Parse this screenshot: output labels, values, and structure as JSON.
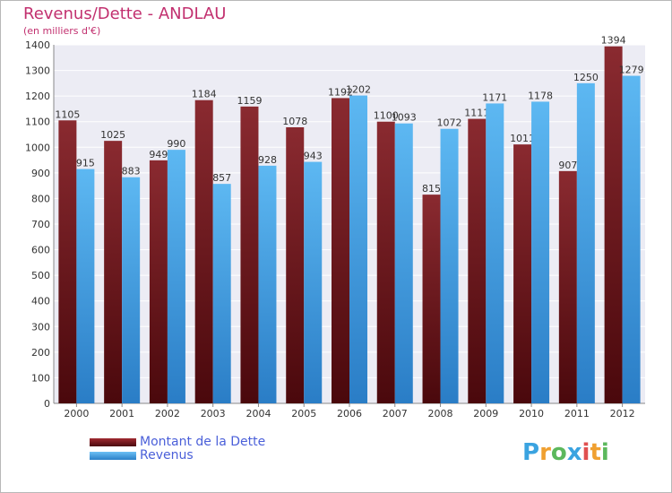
{
  "chart_data": {
    "type": "bar",
    "title": "Revenus/Dette - ANDLAU",
    "subtitle": "(en milliers d'€)",
    "categories": [
      "2000",
      "2001",
      "2002",
      "2003",
      "2004",
      "2005",
      "2006",
      "2007",
      "2008",
      "2009",
      "2010",
      "2011",
      "2012"
    ],
    "series": [
      {
        "name": "Montant de la Dette",
        "color": "#7a1a1f",
        "values": [
          1105,
          1025,
          949,
          1184,
          1159,
          1078,
          1192,
          1100,
          815,
          1111,
          1011,
          907,
          1394
        ]
      },
      {
        "name": "Revenus",
        "color": "#3d9be4",
        "values": [
          915,
          883,
          990,
          857,
          928,
          943,
          1202,
          1093,
          1072,
          1171,
          1178,
          1250,
          1279
        ]
      }
    ],
    "ylim": [
      0,
      1400
    ],
    "yticks": [
      0,
      100,
      200,
      300,
      400,
      500,
      600,
      700,
      800,
      900,
      1000,
      1100,
      1200,
      1300,
      1400
    ],
    "grid": true,
    "legend_position": "bottom-left"
  },
  "logo": {
    "letters": [
      "P",
      "r",
      "o",
      "x",
      "i",
      "t",
      "i"
    ],
    "colors": [
      "#3aa3e0",
      "#f0a030",
      "#5cb85c",
      "#3aa3e0",
      "#e05050",
      "#f0a030",
      "#5cb85c"
    ]
  }
}
